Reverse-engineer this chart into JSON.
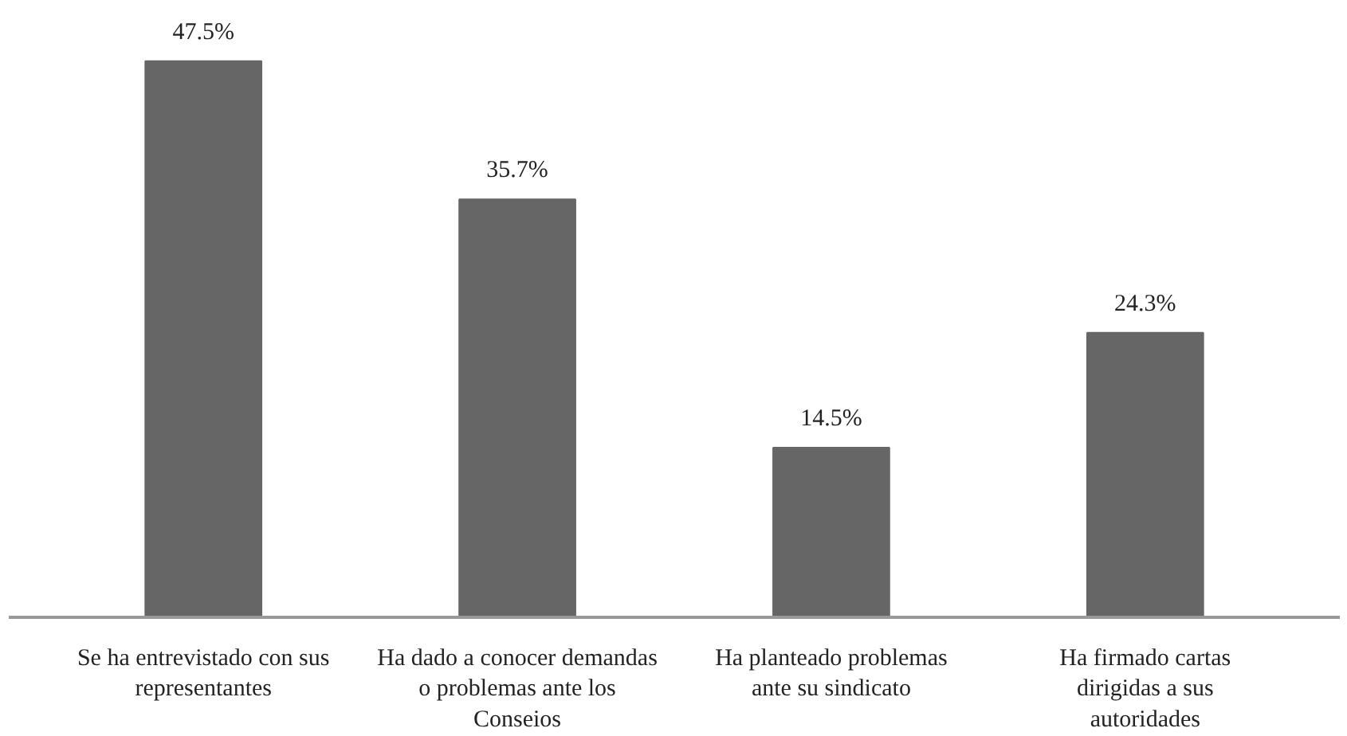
{
  "chart_data": {
    "type": "bar",
    "categories": [
      "Se ha entrevistado con sus representantes",
      "Ha dado a conocer demandas o problemas ante los Conseios",
      "Ha planteado problemas ante su sindicato",
      "Ha firmado cartas dirigidas a sus autoridades"
    ],
    "values": [
      47.5,
      35.7,
      14.5,
      24.3
    ],
    "value_labels": [
      "47.5%",
      "35.7%",
      "14.5%",
      "24.3%"
    ],
    "color": "#666666"
  }
}
